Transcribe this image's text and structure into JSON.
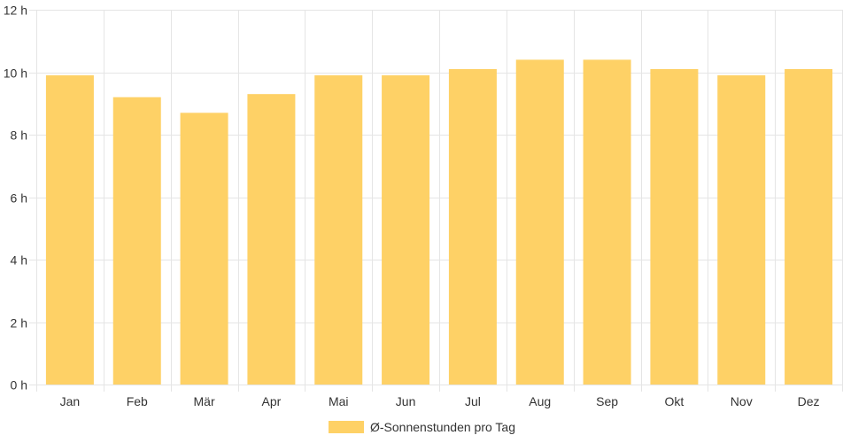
{
  "chart_data": {
    "type": "bar",
    "categories": [
      "Jan",
      "Feb",
      "Mär",
      "Apr",
      "Mai",
      "Jun",
      "Jul",
      "Aug",
      "Sep",
      "Okt",
      "Nov",
      "Dez"
    ],
    "series": [
      {
        "name": "Ø-Sonnenstunden pro Tag",
        "values": [
          9.9,
          9.2,
          8.7,
          9.3,
          9.9,
          9.9,
          10.1,
          10.4,
          10.4,
          10.1,
          9.9,
          10.1
        ],
        "color": "#fed166"
      }
    ],
    "y_ticks": [
      "0 h",
      "2 h",
      "4 h",
      "6 h",
      "8 h",
      "10 h",
      "12 h"
    ],
    "ylim": [
      0,
      12
    ],
    "grid": true,
    "legend_position": "bottom"
  }
}
